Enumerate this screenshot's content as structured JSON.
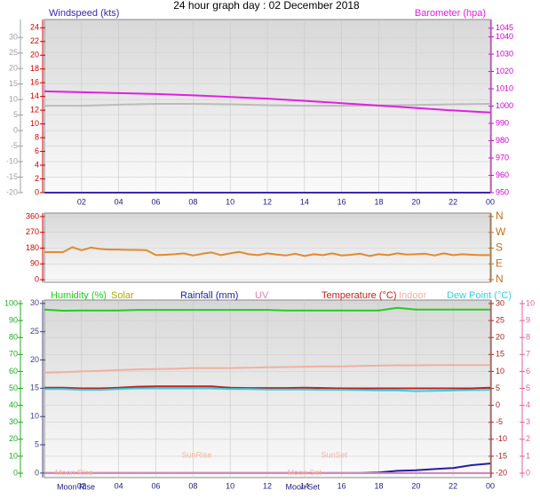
{
  "chart_data": [
    {
      "type": "line",
      "title": "24 hour graph day : 02 December 2018",
      "grid": true,
      "xlim": [
        0,
        24
      ],
      "xticks": [
        {
          "value": 2,
          "label": "02"
        },
        {
          "value": 4,
          "label": "04"
        },
        {
          "value": 6,
          "label": "06"
        },
        {
          "value": 8,
          "label": "08"
        },
        10,
        12,
        14,
        16,
        18,
        20,
        22,
        {
          "value": 24,
          "label": "00"
        }
      ],
      "x": [
        0,
        2,
        4,
        6,
        8,
        10,
        12,
        14,
        16,
        18,
        20,
        22,
        24
      ],
      "axes": [
        {
          "ylim": [
            -20,
            35.8
          ],
          "yticks": [
            30,
            25,
            20,
            15,
            10,
            5,
            0,
            -5,
            -10,
            -15,
            -20
          ],
          "color": "#a0a0a0"
        },
        {
          "ylim": [
            0,
            25.2
          ],
          "yticks": [
            24,
            22,
            20,
            18,
            16,
            14,
            12,
            10,
            8,
            6,
            4,
            2,
            0
          ],
          "color": "#cc0000"
        },
        {
          "ylim": [
            950,
            1050
          ],
          "yticks": [
            1045,
            1040,
            1030,
            1020,
            1010,
            1000,
            990,
            980,
            970,
            960,
            950
          ],
          "color": "#cc00cc"
        }
      ],
      "series": [
        {
          "name": "Windspeed (kts)",
          "color": "#3a2aa8",
          "axis": 1,
          "values": [
            0,
            0,
            0,
            0,
            0,
            0,
            0,
            0,
            0,
            0,
            0,
            0,
            0
          ]
        },
        {
          "color": "#bbbbbb",
          "axis": 2,
          "values": [
            1000.2,
            1000.2,
            1000.8,
            1001.3,
            1001.3,
            1001,
            1000.5,
            1000.2,
            1000.2,
            1000.4,
            1000.6,
            1001,
            1001.3
          ]
        },
        {
          "name": "Barometer (hpa)",
          "color": "#e020e0",
          "axis": 2,
          "values": [
            1008.5,
            1008,
            1007.5,
            1007,
            1006.2,
            1005.3,
            1004.3,
            1003,
            1001.7,
            1000.3,
            998.9,
            997.5,
            996.3
          ]
        }
      ]
    },
    {
      "type": "line",
      "grid": true,
      "xlim": [
        0,
        24
      ],
      "x": [
        0,
        0.5,
        1,
        1.5,
        2,
        2.5,
        3,
        3.5,
        4,
        4.5,
        5,
        5.5,
        6,
        6.5,
        7,
        7.5,
        8,
        8.5,
        9,
        9.5,
        10,
        10.5,
        11,
        11.5,
        12,
        12.5,
        13,
        13.5,
        14,
        14.5,
        15,
        15.5,
        16,
        16.5,
        17,
        17.5,
        18,
        18.5,
        19,
        19.5,
        20,
        20.5,
        21,
        21.5,
        22,
        22.5,
        23,
        23.5,
        24
      ],
      "axes": [
        {
          "ylim": [
            -15,
            380
          ],
          "yticks": [
            360,
            270,
            180,
            90,
            0
          ],
          "color": "#cc0000"
        },
        {
          "ylim": [
            -15,
            380
          ],
          "yticks": [
            {
              "value": 360,
              "label": "N"
            },
            {
              "value": 270,
              "label": "W"
            },
            {
              "value": 180,
              "label": "S"
            },
            {
              "value": 90,
              "label": "E"
            },
            {
              "value": 0,
              "label": "N"
            }
          ],
          "color": "#c07020"
        }
      ],
      "series": [
        {
          "color": "#e08a30",
          "axis": 0,
          "values": [
            157,
            157,
            157,
            185,
            168,
            183,
            175,
            172,
            172,
            170,
            170,
            168,
            140,
            142,
            145,
            150,
            138,
            148,
            155,
            140,
            150,
            158,
            145,
            140,
            150,
            143,
            138,
            148,
            135,
            145,
            140,
            150,
            138,
            142,
            148,
            135,
            145,
            140,
            150,
            143,
            145,
            148,
            138,
            150,
            140,
            145,
            142,
            140,
            140
          ]
        }
      ]
    },
    {
      "type": "line",
      "grid": true,
      "xlim": [
        0,
        24
      ],
      "xticks": [
        {
          "value": 2,
          "label": "02"
        },
        {
          "value": 4,
          "label": "04"
        },
        {
          "value": 6,
          "label": "06"
        },
        {
          "value": 8,
          "label": "08"
        },
        10,
        12,
        14,
        16,
        18,
        20,
        22,
        {
          "value": 24,
          "label": "00"
        }
      ],
      "x": [
        0,
        1,
        2,
        3,
        4,
        5,
        6,
        7,
        8,
        9,
        10,
        11,
        12,
        13,
        14,
        15,
        16,
        17,
        18,
        19,
        20,
        21,
        22,
        23,
        24
      ],
      "axes": [
        {
          "ylim": [
            -2.6,
            102.1
          ],
          "yticks": [
            100,
            90,
            80,
            70,
            60,
            50,
            40,
            30,
            20,
            10,
            0
          ],
          "color": "#22aa22"
        },
        {
          "ylim": [
            -0.8,
            30.6
          ],
          "yticks": [
            30,
            25,
            20,
            15,
            10,
            5,
            0
          ],
          "color": "#404080"
        },
        {
          "ylim": [
            -21.3,
            31.05
          ],
          "yticks": [
            30,
            25,
            20,
            15,
            10,
            5,
            0,
            -5,
            -10,
            -15,
            -20
          ],
          "color": "#aa2020"
        },
        {
          "ylim": [
            -0.26,
            10.21
          ],
          "yticks": [
            10,
            9,
            8,
            7,
            6,
            5,
            4,
            3,
            2,
            1,
            0
          ],
          "color": "#e060a0"
        }
      ],
      "series": [
        {
          "name": "Humidity (%)",
          "color": "#22cc22",
          "axis": 0,
          "values": [
            96.5,
            95.8,
            96,
            96,
            96,
            96.3,
            96.3,
            96.3,
            96.3,
            96.3,
            96.3,
            96.3,
            96.3,
            96,
            96,
            96,
            96,
            96,
            96,
            97.5,
            96.5,
            96.5,
            96.5,
            96.5,
            96.5
          ]
        },
        {
          "name": "Solar",
          "color": "#aaaa00",
          "axis": 1,
          "values": [
            0,
            0,
            0,
            0,
            0,
            0,
            0,
            0,
            0,
            0,
            0,
            0,
            0,
            0,
            0,
            0,
            0,
            0,
            0,
            0,
            0,
            0,
            0,
            0,
            0
          ]
        },
        {
          "name": "Rainfall (mm)",
          "color": "#2020a0",
          "axis": 1,
          "values": [
            0,
            0,
            0,
            0,
            0,
            0,
            0,
            0,
            0,
            0,
            0,
            0,
            0,
            0,
            0,
            0,
            0,
            0,
            0.1,
            0.4,
            0.5,
            0.7,
            0.9,
            1.4,
            1.7
          ]
        },
        {
          "name": "UV",
          "color": "#e080c0",
          "axis": 3,
          "values": [
            0,
            0,
            0,
            0,
            0,
            0,
            0,
            0,
            0,
            0,
            0,
            0,
            0,
            0,
            0,
            0,
            0,
            0,
            0,
            0,
            0,
            0,
            0,
            0,
            0
          ]
        },
        {
          "name": "Temperature (°C)",
          "color": "#c02020",
          "axis": 2,
          "values": [
            5.2,
            5.2,
            5,
            5,
            5.2,
            5.5,
            5.6,
            5.6,
            5.6,
            5.6,
            5.2,
            5.1,
            5.1,
            5.1,
            5.2,
            5.1,
            5,
            5,
            5,
            5,
            5,
            5,
            5,
            5,
            5.2
          ]
        },
        {
          "name": "Indoor",
          "color": "#f0b0a0",
          "axis": 2,
          "values": [
            9.6,
            9.8,
            10,
            10.2,
            10.4,
            10.6,
            10.7,
            10.8,
            11,
            11,
            11,
            11.1,
            11.2,
            11.3,
            11.4,
            11.5,
            11.5,
            11.6,
            11.7,
            11.8,
            11.8,
            11.9,
            11.9,
            11.9,
            11.9
          ]
        },
        {
          "name": "Dew Point (°C)",
          "color": "#30d0e0",
          "axis": 2,
          "values": [
            4.8,
            4.8,
            4.6,
            4.6,
            4.8,
            5,
            5,
            5,
            5,
            5,
            4.8,
            4.8,
            4.7,
            4.7,
            4.7,
            4.6,
            4.6,
            4.5,
            4.4,
            4.4,
            4.2,
            4.3,
            4.4,
            4.5,
            4.6
          ]
        }
      ],
      "annotations": [
        {
          "text": "Moon Rise",
          "x": 1.6
        },
        {
          "text": "SunRise",
          "x": 8.2
        },
        {
          "text": "Moon Set",
          "x": 14
        },
        {
          "text": "SunSet",
          "x": 15.6
        },
        {
          "text": "Moon Rise",
          "x": 1.7
        },
        {
          "text": "Moon Set",
          "x": 13.9
        }
      ]
    }
  ]
}
